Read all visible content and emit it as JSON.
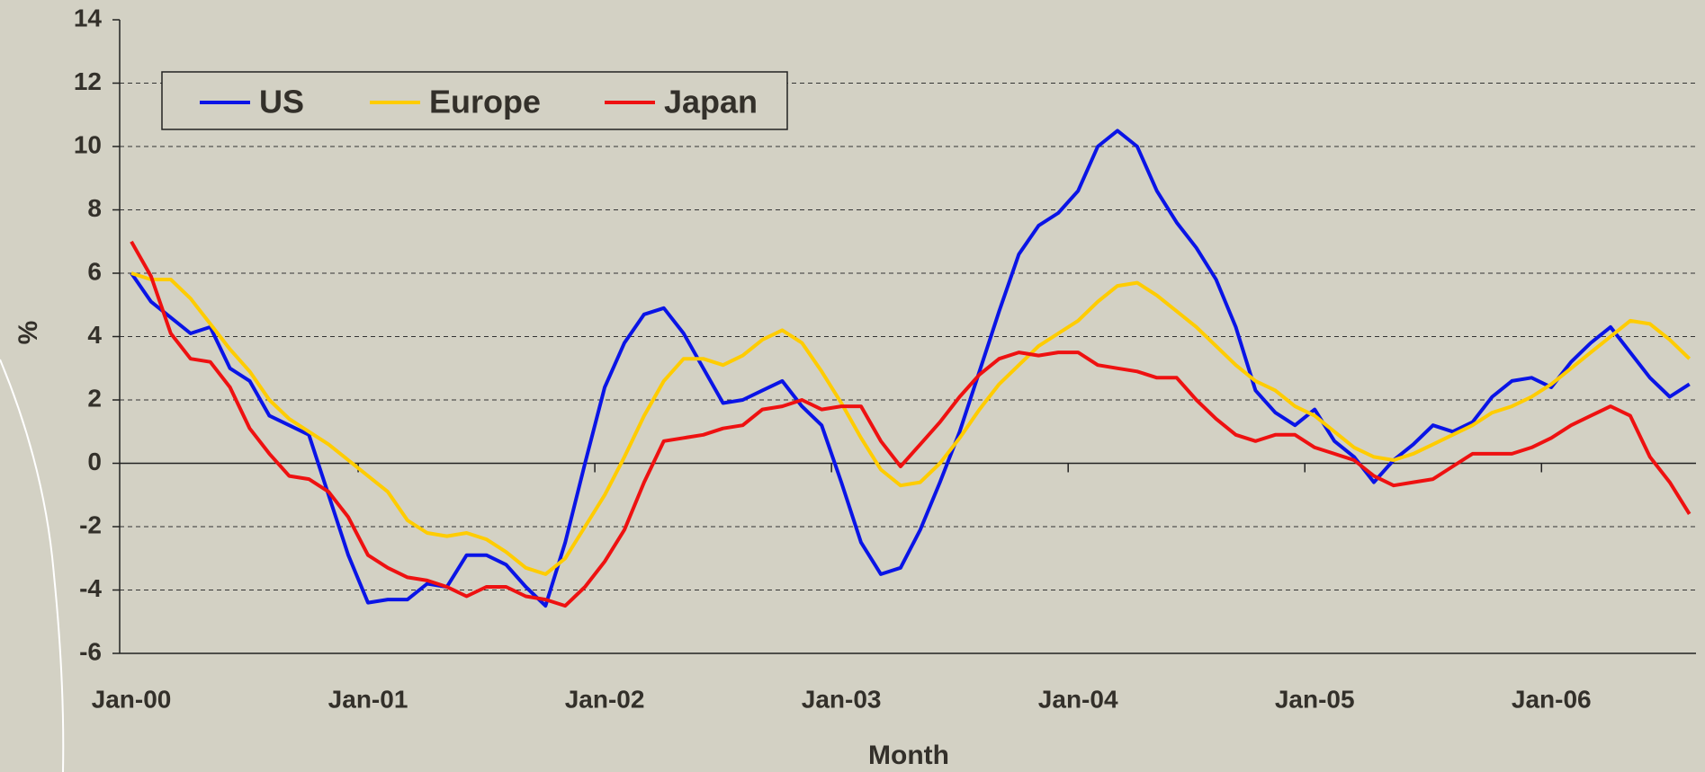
{
  "chart_data": {
    "type": "line",
    "x_label": "Month",
    "y_label": "%",
    "categories": [
      "Jan-00",
      null,
      null,
      null,
      null,
      null,
      null,
      null,
      null,
      null,
      null,
      null,
      "Jan-01",
      null,
      null,
      null,
      null,
      null,
      null,
      null,
      null,
      null,
      null,
      null,
      "Jan-02",
      null,
      null,
      null,
      null,
      null,
      null,
      null,
      null,
      null,
      null,
      null,
      "Jan-03",
      null,
      null,
      null,
      null,
      null,
      null,
      null,
      null,
      null,
      null,
      null,
      "Jan-04",
      null,
      null,
      null,
      null,
      null,
      null,
      null,
      null,
      null,
      null,
      null,
      "Jan-05",
      null,
      null,
      null,
      null,
      null,
      null,
      null,
      null,
      null,
      null,
      null,
      "Jan-06",
      null,
      null,
      null,
      null,
      null,
      null,
      null
    ],
    "series": [
      {
        "name": "US",
        "color": "#0a14e6",
        "values": [
          6.0,
          5.1,
          4.6,
          4.1,
          4.3,
          3.0,
          2.6,
          1.5,
          1.2,
          0.9,
          -1.0,
          -2.9,
          -4.4,
          -4.3,
          -4.3,
          -3.8,
          -3.9,
          -2.9,
          -2.9,
          -3.2,
          -3.9,
          -4.5,
          -2.5,
          0.0,
          2.4,
          3.8,
          4.7,
          4.9,
          4.1,
          3.0,
          1.9,
          2.0,
          2.3,
          2.6,
          1.8,
          1.2,
          -0.6,
          -2.5,
          -3.5,
          -3.3,
          -2.1,
          -0.6,
          1.0,
          2.9,
          4.8,
          6.6,
          7.5,
          7.9,
          8.6,
          10.0,
          10.5,
          10.0,
          8.6,
          7.6,
          6.8,
          5.8,
          4.3,
          2.3,
          1.6,
          1.2,
          1.7,
          0.7,
          0.2,
          -0.6,
          0.1,
          0.6,
          1.2,
          1.0,
          1.3,
          2.1,
          2.6,
          2.7,
          2.4,
          3.2,
          3.8,
          4.3,
          3.5,
          2.7,
          2.1,
          2.5
        ]
      },
      {
        "name": "Europe",
        "color": "#ffcc00",
        "values": [
          6.0,
          5.8,
          5.8,
          5.2,
          4.4,
          3.6,
          2.9,
          2.0,
          1.4,
          1.0,
          0.6,
          0.1,
          -0.4,
          -0.9,
          -1.8,
          -2.2,
          -2.3,
          -2.2,
          -2.4,
          -2.8,
          -3.3,
          -3.5,
          -3.0,
          -2.0,
          -1.0,
          0.2,
          1.5,
          2.6,
          3.3,
          3.3,
          3.1,
          3.4,
          3.9,
          4.2,
          3.8,
          2.9,
          1.9,
          0.8,
          -0.2,
          -0.7,
          -0.6,
          0.0,
          0.8,
          1.7,
          2.5,
          3.1,
          3.7,
          4.1,
          4.5,
          5.1,
          5.6,
          5.7,
          5.3,
          4.8,
          4.3,
          3.7,
          3.1,
          2.6,
          2.3,
          1.8,
          1.5,
          1.0,
          0.5,
          0.2,
          0.1,
          0.3,
          0.6,
          0.9,
          1.2,
          1.6,
          1.8,
          2.1,
          2.5,
          3.0,
          3.5,
          4.0,
          4.5,
          4.4,
          3.9,
          3.3
        ]
      },
      {
        "name": "Japan",
        "color": "#ee1111",
        "values": [
          7.0,
          5.9,
          4.1,
          3.3,
          3.2,
          2.4,
          1.1,
          0.3,
          -0.4,
          -0.5,
          -0.9,
          -1.7,
          -2.9,
          -3.3,
          -3.6,
          -3.7,
          -3.9,
          -4.2,
          -3.9,
          -3.9,
          -4.2,
          -4.3,
          -4.5,
          -3.9,
          -3.1,
          -2.1,
          -0.6,
          0.7,
          0.8,
          0.9,
          1.1,
          1.2,
          1.7,
          1.8,
          2.0,
          1.7,
          1.8,
          1.8,
          0.7,
          -0.1,
          0.6,
          1.3,
          2.1,
          2.8,
          3.3,
          3.5,
          3.4,
          3.5,
          3.5,
          3.1,
          3.0,
          2.9,
          2.7,
          2.7,
          2.0,
          1.4,
          0.9,
          0.7,
          0.9,
          0.9,
          0.5,
          0.3,
          0.1,
          -0.4,
          -0.7,
          -0.6,
          -0.5,
          -0.1,
          0.3,
          0.3,
          0.3,
          0.5,
          0.8,
          1.2,
          1.5,
          1.8,
          1.5,
          0.2,
          -0.6,
          -1.6
        ]
      }
    ],
    "ylim": [
      -6,
      14
    ],
    "yticks": [
      -6,
      -4,
      -2,
      0,
      2,
      4,
      6,
      8,
      10,
      12,
      14
    ],
    "grid": true,
    "legend": "upper left"
  }
}
